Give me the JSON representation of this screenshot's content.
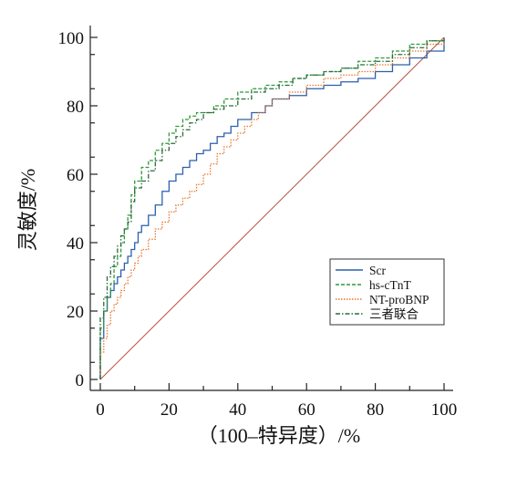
{
  "chart_data": {
    "type": "line",
    "title": "",
    "xlabel": "（100–特异度）/%",
    "ylabel": "灵敏度/%",
    "xlim": [
      0,
      100
    ],
    "ylim": [
      0,
      100
    ],
    "xticks": [
      0,
      20,
      40,
      60,
      80,
      100
    ],
    "yticks": [
      0,
      20,
      40,
      60,
      80,
      100
    ],
    "grid": false,
    "legend_position": "lower-right",
    "reference_line": {
      "x": [
        0,
        100
      ],
      "y": [
        0,
        100
      ],
      "color": "#b5503c"
    },
    "series": [
      {
        "name": "Scr",
        "color": "#2b5fae",
        "style": "solid",
        "x": [
          0,
          0,
          1,
          1,
          2,
          3,
          4,
          5,
          6,
          7,
          8,
          9,
          10,
          11,
          12,
          14,
          16,
          18,
          20,
          22,
          24,
          26,
          28,
          30,
          32,
          34,
          36,
          38,
          40,
          42,
          44,
          46,
          48,
          50,
          55,
          60,
          65,
          70,
          75,
          80,
          85,
          90,
          95,
          100
        ],
        "y": [
          0,
          12,
          16,
          20,
          24,
          26,
          28,
          30,
          32,
          34,
          36,
          38,
          40,
          43,
          45,
          48,
          51,
          55,
          58,
          60,
          62,
          64,
          66,
          67,
          69,
          71,
          72,
          74,
          76,
          76,
          78,
          78,
          80,
          82,
          83,
          85,
          86,
          87,
          88,
          90,
          92,
          94,
          96,
          100
        ]
      },
      {
        "name": "hs-cTnT",
        "color": "#2e9a3a",
        "style": "dashed",
        "x": [
          0,
          0,
          1,
          2,
          3,
          4,
          5,
          6,
          7,
          8,
          9,
          10,
          12,
          14,
          16,
          18,
          20,
          22,
          24,
          26,
          28,
          30,
          33,
          36,
          40,
          44,
          48,
          52,
          56,
          60,
          65,
          70,
          75,
          80,
          85,
          90,
          95,
          100
        ],
        "y": [
          0,
          15,
          20,
          24,
          28,
          33,
          36,
          40,
          44,
          48,
          54,
          58,
          62,
          64,
          67,
          69,
          72,
          74,
          76,
          77,
          78,
          78,
          80,
          82,
          84,
          85,
          86,
          87,
          88,
          89,
          90,
          91,
          93,
          94,
          96,
          98,
          99,
          100
        ]
      },
      {
        "name": "NT-proBNP",
        "color": "#e8772e",
        "style": "dotted",
        "x": [
          0,
          0,
          1,
          2,
          3,
          4,
          5,
          6,
          7,
          8,
          9,
          10,
          11,
          12,
          14,
          16,
          18,
          20,
          22,
          24,
          26,
          28,
          30,
          32,
          34,
          36,
          38,
          40,
          42,
          44,
          46,
          48,
          50,
          55,
          60,
          65,
          70,
          75,
          80,
          85,
          90,
          95,
          100
        ],
        "y": [
          0,
          8,
          12,
          16,
          20,
          22,
          24,
          26,
          28,
          30,
          32,
          34,
          36,
          38,
          41,
          44,
          46,
          49,
          51,
          53,
          55,
          57,
          60,
          63,
          66,
          68,
          70,
          72,
          74,
          76,
          78,
          80,
          82,
          84,
          86,
          88,
          89,
          90,
          92,
          94,
          96,
          98,
          100
        ]
      },
      {
        "name": "三者联合",
        "color": "#2a6b3c",
        "style": "dashdot",
        "x": [
          0,
          0,
          1,
          2,
          3,
          4,
          5,
          6,
          7,
          8,
          9,
          10,
          12,
          14,
          16,
          18,
          20,
          22,
          24,
          26,
          28,
          30,
          33,
          36,
          40,
          44,
          48,
          52,
          56,
          60,
          65,
          70,
          75,
          80,
          85,
          90,
          95,
          100
        ],
        "y": [
          0,
          18,
          24,
          30,
          33,
          36,
          39,
          42,
          44,
          46,
          52,
          56,
          58,
          61,
          64,
          67,
          69,
          71,
          73,
          75,
          76,
          78,
          79,
          80,
          82,
          84,
          85,
          86,
          88,
          89,
          90,
          91,
          92,
          93,
          95,
          97,
          99,
          100
        ]
      }
    ]
  }
}
